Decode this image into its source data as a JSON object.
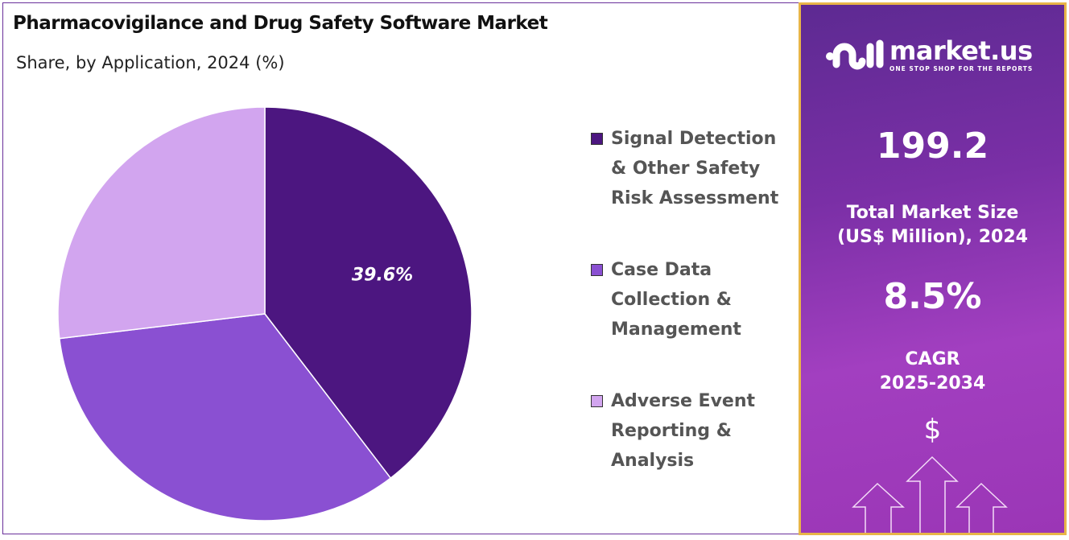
{
  "chart_data": {
    "type": "pie",
    "title": "Pharmacovigilance and Drug Safety Software Market",
    "subtitle": "Share, by Application, 2024 (%)",
    "slices": [
      {
        "name": "Signal Detection & Other Safety Risk Assessment",
        "value": 39.6,
        "label": "39.6%",
        "color": "#4c1680"
      },
      {
        "name": "Case Data Collection & Management",
        "value": 33.5,
        "label": "",
        "color": "#8a50d2"
      },
      {
        "name": "Adverse Event Reporting & Analysis",
        "value": 26.9,
        "label": "",
        "color": "#d2a5ef"
      }
    ],
    "legend_placement": "right",
    "legend_lines": [
      [
        "Signal Detection",
        "& Other Safety",
        "Risk Assessment"
      ],
      [
        "Case Data",
        "Collection &",
        "Management"
      ],
      [
        "Adverse Event",
        "Reporting &",
        "Analysis"
      ]
    ]
  },
  "panel": {
    "brand": "market.us",
    "tagline": "ONE STOP SHOP FOR THE REPORTS",
    "market_size": "199.2",
    "market_size_label_1": "Total Market Size",
    "market_size_label_2": "(US$ Million), 2024",
    "cagr": "8.5%",
    "cagr_label_1": "CAGR",
    "cagr_label_2": "2025-2034",
    "currency_symbol": "$",
    "icons": [
      "market-us-logo",
      "dollar-icon",
      "up-arrows-icon"
    ],
    "border_color": "#e8b548"
  }
}
